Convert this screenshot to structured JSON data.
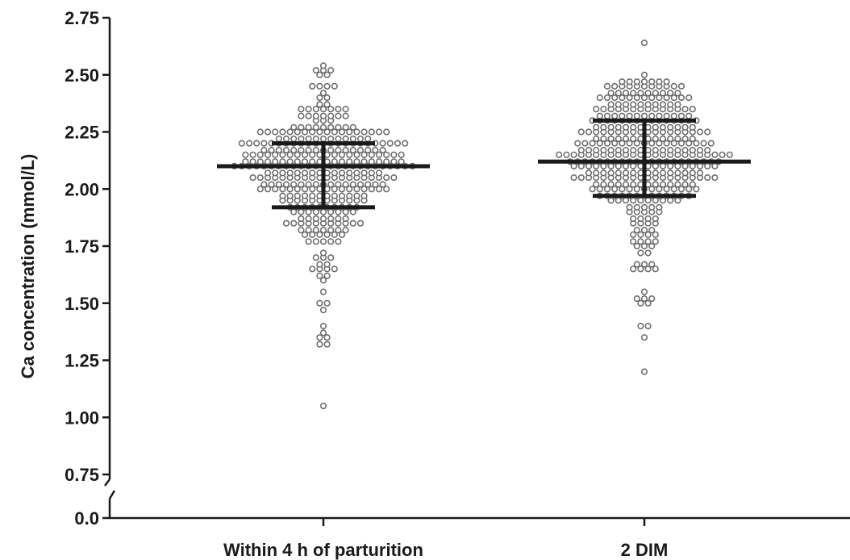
{
  "chart_data": {
    "type": "scatter",
    "subtype": "dot-plot",
    "title": "",
    "xlabel": "",
    "ylabel": "Ca concentration (mmol/L)",
    "ylim": [
      0.75,
      2.75
    ],
    "y_ticks": [
      "0.0",
      "0.75",
      "1.00",
      "1.25",
      "1.50",
      "1.75",
      "2.00",
      "2.25",
      "2.50",
      "2.75"
    ],
    "axis_break": {
      "from": 0.0,
      "to": 0.75
    },
    "grid": false,
    "legend": "none",
    "colors": {
      "marker_edge": "#6e6e6e",
      "summary": "#1a1a1a"
    },
    "groups": [
      {
        "category": "Within 4 h of parturition",
        "mean": 2.1,
        "sd_upper": 2.2,
        "sd_lower": 1.92,
        "points": [
          [
            1.05,
            1
          ],
          [
            1.32,
            2
          ],
          [
            1.35,
            2
          ],
          [
            1.37,
            1
          ],
          [
            1.4,
            1
          ],
          [
            1.47,
            1
          ],
          [
            1.5,
            2
          ],
          [
            1.55,
            1
          ],
          [
            1.6,
            1
          ],
          [
            1.62,
            2
          ],
          [
            1.65,
            4
          ],
          [
            1.67,
            2
          ],
          [
            1.7,
            3
          ],
          [
            1.72,
            1
          ],
          [
            1.77,
            5
          ],
          [
            1.8,
            6
          ],
          [
            1.82,
            7
          ],
          [
            1.85,
            11
          ],
          [
            1.87,
            7
          ],
          [
            1.9,
            9
          ],
          [
            1.92,
            10
          ],
          [
            1.95,
            12
          ],
          [
            1.97,
            12
          ],
          [
            2.0,
            18
          ],
          [
            2.02,
            17
          ],
          [
            2.05,
            20
          ],
          [
            2.07,
            16
          ],
          [
            2.1,
            25
          ],
          [
            2.12,
            22
          ],
          [
            2.15,
            22
          ],
          [
            2.17,
            17
          ],
          [
            2.2,
            23
          ],
          [
            2.22,
            13
          ],
          [
            2.25,
            18
          ],
          [
            2.27,
            9
          ],
          [
            2.3,
            3
          ],
          [
            2.32,
            7
          ],
          [
            2.35,
            7
          ],
          [
            2.37,
            2
          ],
          [
            2.4,
            2
          ],
          [
            2.42,
            1
          ],
          [
            2.45,
            4
          ],
          [
            2.5,
            2
          ],
          [
            2.52,
            3
          ],
          [
            2.54,
            1
          ]
        ]
      },
      {
        "category": "2 DIM",
        "mean": 2.12,
        "sd_upper": 2.3,
        "sd_lower": 1.97,
        "points": [
          [
            1.2,
            1
          ],
          [
            1.35,
            1
          ],
          [
            1.4,
            2
          ],
          [
            1.5,
            2
          ],
          [
            1.52,
            3
          ],
          [
            1.55,
            1
          ],
          [
            1.65,
            4
          ],
          [
            1.67,
            3
          ],
          [
            1.72,
            2
          ],
          [
            1.75,
            3
          ],
          [
            1.77,
            4
          ],
          [
            1.8,
            4
          ],
          [
            1.82,
            3
          ],
          [
            1.85,
            4
          ],
          [
            1.87,
            4
          ],
          [
            1.9,
            5
          ],
          [
            1.92,
            5
          ],
          [
            1.95,
            10
          ],
          [
            1.97,
            13
          ],
          [
            2.0,
            15
          ],
          [
            2.02,
            14
          ],
          [
            2.05,
            20
          ],
          [
            2.07,
            16
          ],
          [
            2.1,
            20
          ],
          [
            2.12,
            21
          ],
          [
            2.15,
            24
          ],
          [
            2.17,
            18
          ],
          [
            2.2,
            19
          ],
          [
            2.22,
            14
          ],
          [
            2.25,
            18
          ],
          [
            2.27,
            14
          ],
          [
            2.3,
            15
          ],
          [
            2.32,
            13
          ],
          [
            2.35,
            14
          ],
          [
            2.37,
            10
          ],
          [
            2.4,
            13
          ],
          [
            2.42,
            10
          ],
          [
            2.45,
            11
          ],
          [
            2.47,
            7
          ],
          [
            2.5,
            1
          ],
          [
            2.64,
            1
          ]
        ]
      }
    ]
  }
}
